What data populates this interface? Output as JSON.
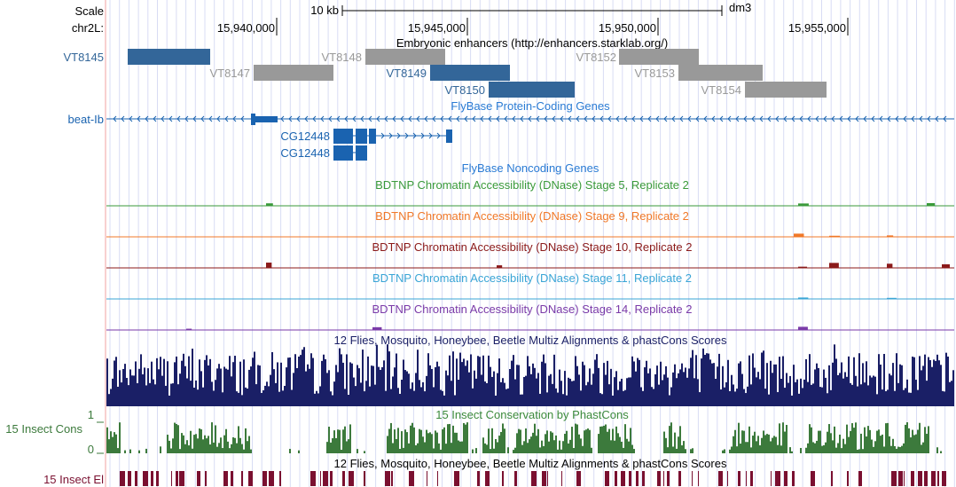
{
  "ruler": {
    "scale_label": "Scale",
    "chrom_label": "chr2L:",
    "scale_bar_label": "10 kb",
    "assembly": "dm3",
    "ticks": [
      "15,940,000",
      "15,945,000",
      "15,950,000",
      "15,955,000"
    ]
  },
  "colors": {
    "enhancer_blue": "#336699",
    "enhancer_gray": "#999999",
    "gene": "#1a63b0",
    "stage5": "#3a9a3a",
    "stage9": "#f07828",
    "stage10": "#8b1a1a",
    "stage11": "#3aa5d6",
    "stage14": "#7a3aa8",
    "multiz": "#1a1f66",
    "phastcons": "#3c7a3c",
    "elements": "#7a1030"
  },
  "tracks": {
    "enhancers": {
      "title": "Embryonic enhancers (http://enhancers.starklab.org/)",
      "items": [
        {
          "label": "VT8145",
          "style": "blue"
        },
        {
          "label": "VT8147",
          "style": "gray"
        },
        {
          "label": "VT8148",
          "style": "gray"
        },
        {
          "label": "VT8149",
          "style": "blue"
        },
        {
          "label": "VT8150",
          "style": "blue"
        },
        {
          "label": "VT8152",
          "style": "gray"
        },
        {
          "label": "VT8153",
          "style": "gray"
        },
        {
          "label": "VT8154",
          "style": "gray"
        }
      ]
    },
    "flybase_coding": {
      "title": "FlyBase Protein-Coding Genes",
      "genes": [
        "beat-Ib",
        "CG12448",
        "CG12448"
      ]
    },
    "flybase_noncoding": {
      "title": "FlyBase Noncoding Genes"
    },
    "dnase": [
      {
        "title": "BDTNP Chromatin Accessibility (DNase) Stage 5, Replicate 2",
        "color_key": "stage5"
      },
      {
        "title": "BDTNP Chromatin Accessibility (DNase) Stage 9, Replicate 2",
        "color_key": "stage9"
      },
      {
        "title": "BDTNP Chromatin Accessibility (DNase) Stage 10, Replicate 2",
        "color_key": "stage10"
      },
      {
        "title": "BDTNP Chromatin Accessibility (DNase) Stage 11, Replicate 2",
        "color_key": "stage11"
      },
      {
        "title": "BDTNP Chromatin Accessibility (DNase) Stage 14, Replicate 2",
        "color_key": "stage14"
      }
    ],
    "multiz": {
      "title": "12 Flies, Mosquito, Honeybee, Beetle Multiz Alignments & phastCons Scores"
    },
    "phastcons": {
      "title": "15 Insect Conservation by PhastCons",
      "side_label": "15 Insect Cons",
      "axis_max": "1",
      "axis_min": "0"
    },
    "elements": {
      "title": "12 Flies, Mosquito, Honeybee, Beetle Multiz Alignments & phastCons Scores",
      "side_label": "15 Insect El"
    }
  }
}
